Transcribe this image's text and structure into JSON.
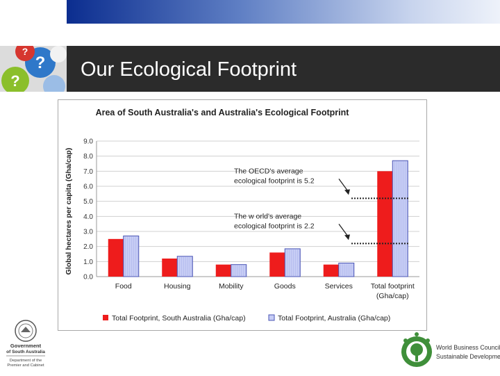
{
  "slide": {
    "title": "Our Ecological Footprint"
  },
  "logos": {
    "left": {
      "name_line1": "Government",
      "name_line2": "of South Australia",
      "dept_line1": "Department of the",
      "dept_line2": "Premier and Cabinet"
    },
    "right": {
      "line1": "World Business Council for",
      "line2": "Sustainable Development"
    }
  },
  "chart_data": {
    "type": "bar",
    "title": "Area of South Australia's and Australia's Ecological Footprint",
    "ylabel": "Global hectares per capita (Gha/cap)",
    "xlabel": "",
    "ylim": [
      0,
      9
    ],
    "yticks": [
      "0.0",
      "1.0",
      "2.0",
      "3.0",
      "4.0",
      "5.0",
      "6.0",
      "7.0",
      "8.0",
      "9.0"
    ],
    "grid": true,
    "legend_position": "bottom",
    "categories": [
      [
        "Food"
      ],
      [
        "Housing"
      ],
      [
        "Mobility"
      ],
      [
        "Goods"
      ],
      [
        "Services"
      ],
      [
        "Total footprint",
        "(Gha/cap)"
      ]
    ],
    "series": [
      {
        "name": "Total Footprint, South Australia (Gha/cap)",
        "color": "#ee1c1c",
        "values": [
          2.5,
          1.2,
          0.8,
          1.6,
          0.8,
          7.0
        ]
      },
      {
        "name": "Total Footprint, Australia (Gha/cap)",
        "color": "#c7cdf5",
        "stroke": "#4a55b5",
        "values": [
          2.7,
          1.35,
          0.8,
          1.85,
          0.9,
          7.7
        ]
      }
    ],
    "annotations": [
      {
        "lines": [
          "The OECD's average",
          "ecological footprint is 5.2"
        ],
        "value": 5.2
      },
      {
        "lines": [
          "The w orld's average",
          "ecological footprint is 2.2"
        ],
        "value": 2.2
      }
    ]
  }
}
